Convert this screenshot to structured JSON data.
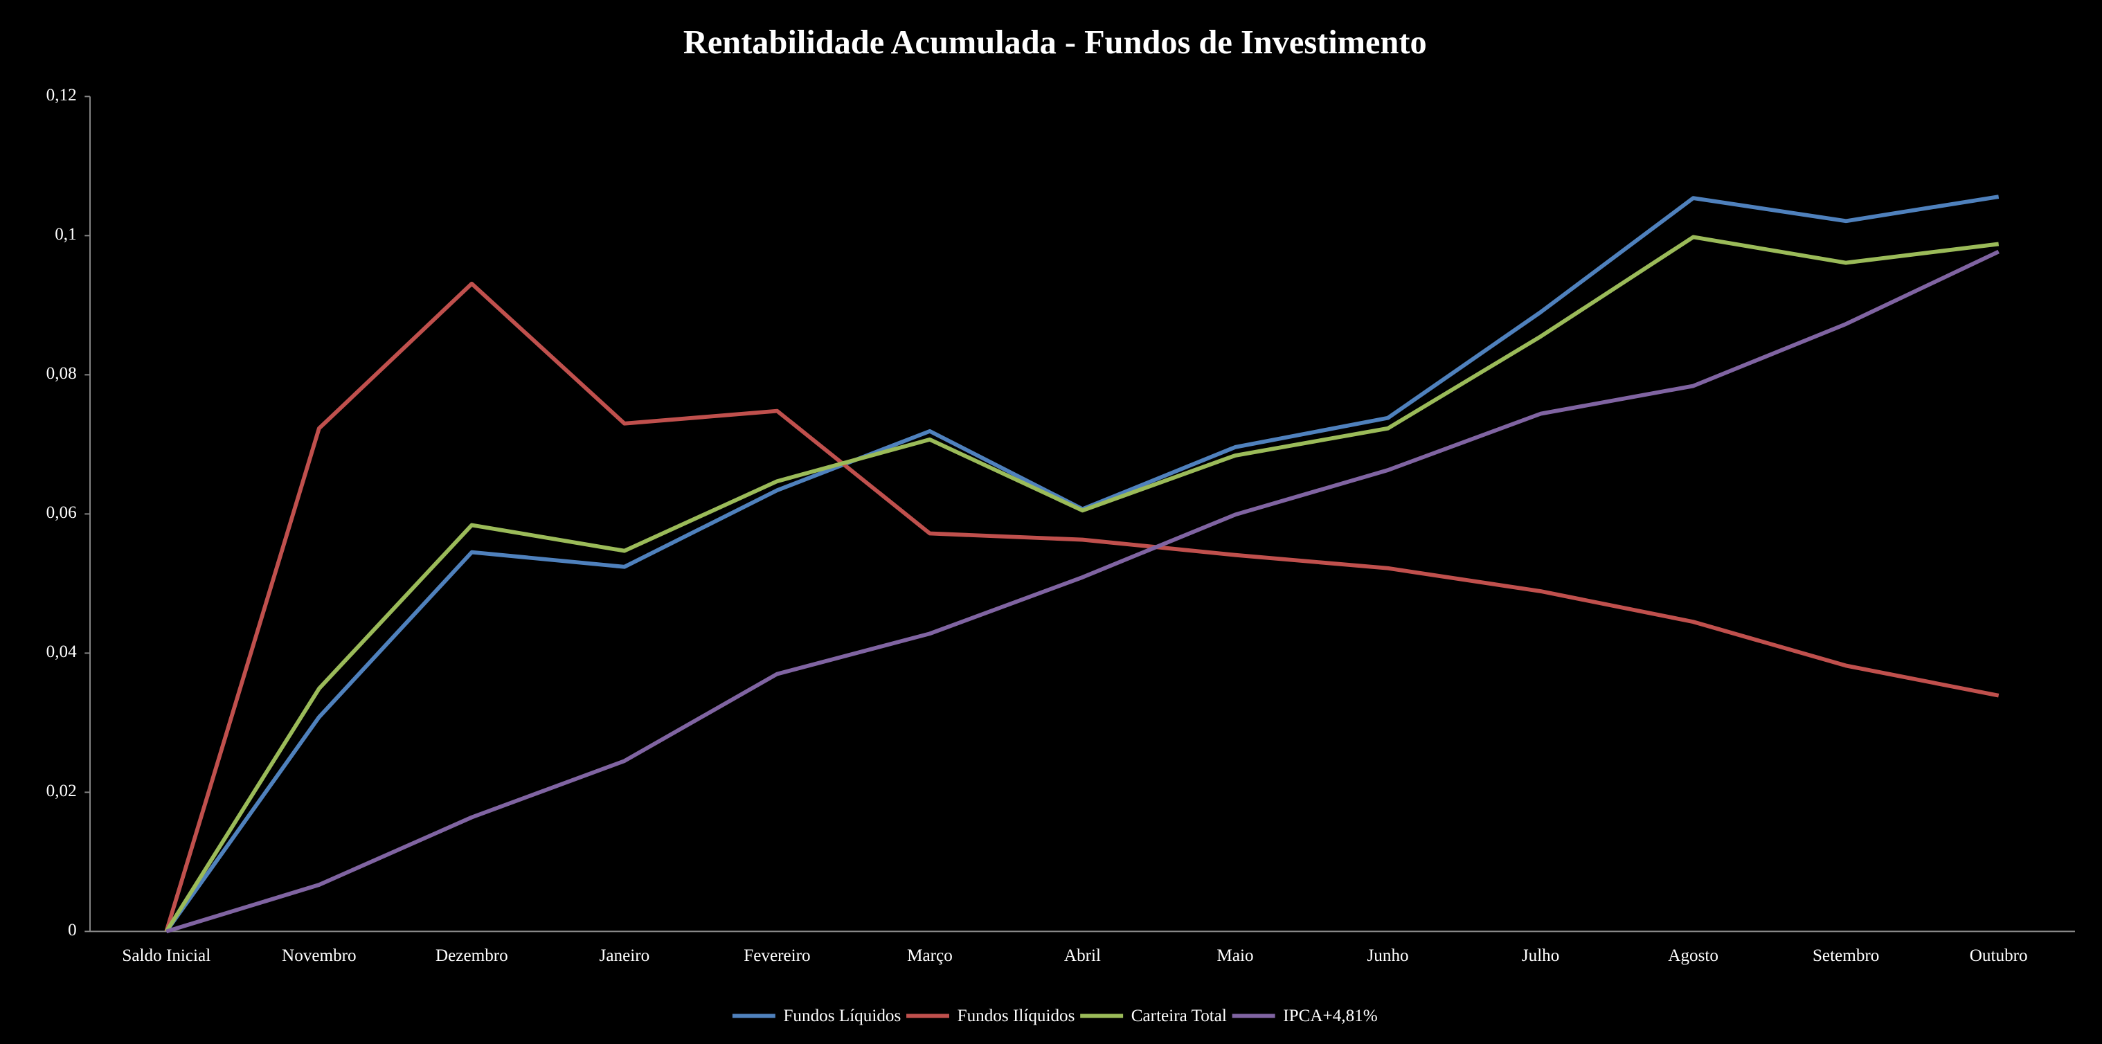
{
  "chart_data": {
    "type": "line",
    "title": "Rentabilidade Acumulada - Fundos de Investimento",
    "categories": [
      "Saldo Inicial",
      "Novembro",
      "Dezembro",
      "Janeiro",
      "Fevereiro",
      "Março",
      "Abril",
      "Maio",
      "Junho",
      "Julho",
      "Agosto",
      "Setembro",
      "Outubro"
    ],
    "series": [
      {
        "name": "Fundos Líquidos",
        "color": "#4f81bd",
        "values": [
          0,
          0.0308,
          0.0545,
          0.0524,
          0.0634,
          0.0719,
          0.0607,
          0.0696,
          0.0738,
          0.089,
          0.1054,
          0.1021,
          0.1056
        ]
      },
      {
        "name": "Fundos Ilíquidos",
        "color": "#c0504d",
        "values": [
          0,
          0.0723,
          0.0931,
          0.073,
          0.0748,
          0.0572,
          0.0563,
          0.0541,
          0.0522,
          0.0489,
          0.0445,
          0.0382,
          0.0339
        ]
      },
      {
        "name": "Carteira Total",
        "color": "#9bbb59",
        "values": [
          0,
          0.0349,
          0.0584,
          0.0547,
          0.0647,
          0.0707,
          0.0605,
          0.0684,
          0.0723,
          0.0855,
          0.0998,
          0.0961,
          0.0988
        ]
      },
      {
        "name": "IPCA+4,81%",
        "color": "#8064a2",
        "values": [
          0,
          0.0067,
          0.0164,
          0.0245,
          0.037,
          0.0428,
          0.0509,
          0.0599,
          0.0663,
          0.0744,
          0.0784,
          0.0873,
          0.0977
        ]
      }
    ],
    "ylim": [
      0,
      0.12
    ],
    "yticks": [
      0,
      {
        "value": 0.02,
        "label": "0,02"
      },
      {
        "value": 0.04,
        "label": "0,04"
      },
      {
        "value": 0.06,
        "label": "0,06"
      },
      {
        "value": 0.08,
        "label": "0,08"
      },
      {
        "value": 0.1,
        "label": "0,1"
      },
      {
        "value": 0.12,
        "label": "0,12"
      }
    ],
    "grid": false,
    "legend": "bottom"
  }
}
